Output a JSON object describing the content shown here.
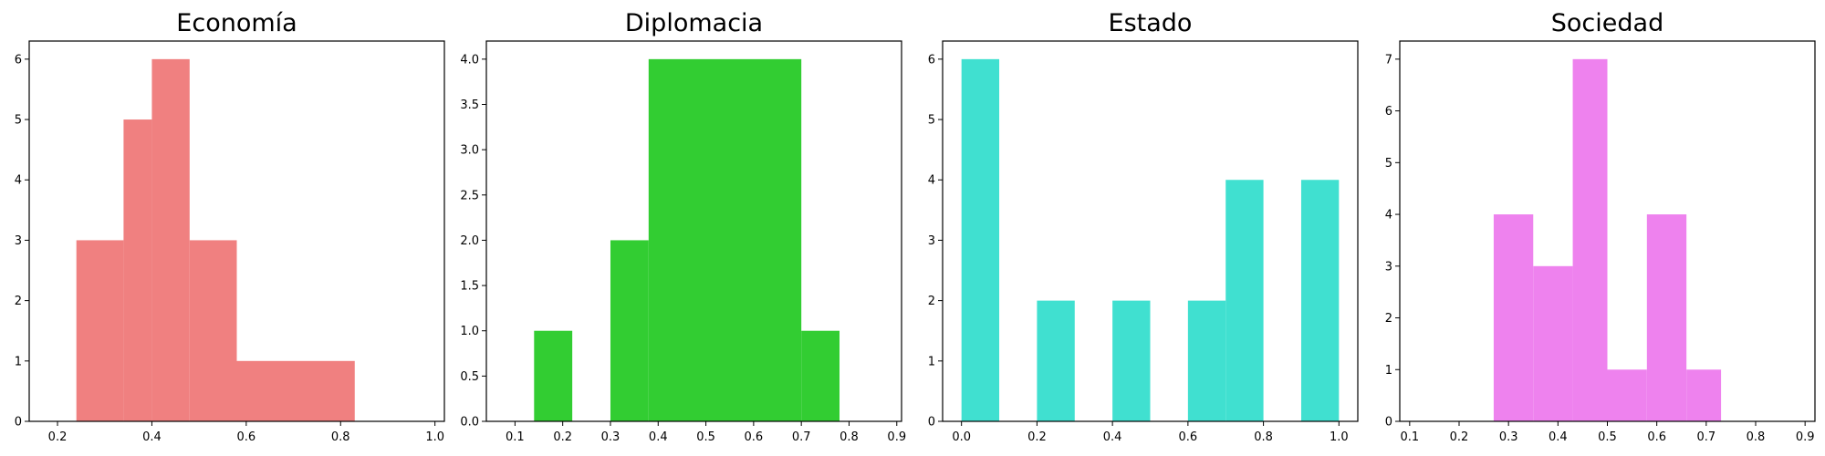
{
  "chart_data": [
    {
      "type": "bar",
      "subtype": "histogram",
      "title": "Economía",
      "color": "#f08080",
      "xlim": [
        0.14,
        1.02
      ],
      "ylim": [
        0,
        6.3
      ],
      "xticks": [
        0.2,
        0.4,
        0.6,
        0.8,
        1.0
      ],
      "xtick_labels": [
        "0.2",
        "0.4",
        "0.6",
        "0.8",
        "1.0"
      ],
      "yticks": [
        0,
        1,
        2,
        3,
        4,
        5,
        6
      ],
      "ytick_labels": [
        "0",
        "1",
        "2",
        "3",
        "4",
        "5",
        "6"
      ],
      "bins": [
        {
          "start": 0.24,
          "end": 0.34,
          "count": 3
        },
        {
          "start": 0.34,
          "end": 0.4,
          "count": 5
        },
        {
          "start": 0.4,
          "end": 0.48,
          "count": 6
        },
        {
          "start": 0.48,
          "end": 0.58,
          "count": 3
        },
        {
          "start": 0.58,
          "end": 0.83,
          "count": 1
        }
      ]
    },
    {
      "type": "bar",
      "subtype": "histogram",
      "title": "Diplomacia",
      "color": "#32cd32",
      "xlim": [
        0.04,
        0.91
      ],
      "ylim": [
        0,
        4.2
      ],
      "xticks": [
        0.1,
        0.2,
        0.3,
        0.4,
        0.5,
        0.6,
        0.7,
        0.8,
        0.9
      ],
      "xtick_labels": [
        "0.1",
        "0.2",
        "0.3",
        "0.4",
        "0.5",
        "0.6",
        "0.7",
        "0.8",
        "0.9"
      ],
      "yticks": [
        0,
        0.5,
        1.0,
        1.5,
        2.0,
        2.5,
        3.0,
        3.5,
        4.0
      ],
      "ytick_labels": [
        "0.0",
        "0.5",
        "1.0",
        "1.5",
        "2.0",
        "2.5",
        "3.0",
        "3.5",
        "4.0"
      ],
      "bins": [
        {
          "start": 0.14,
          "end": 0.22,
          "count": 1
        },
        {
          "start": 0.3,
          "end": 0.38,
          "count": 2
        },
        {
          "start": 0.38,
          "end": 0.7,
          "count": 4
        },
        {
          "start": 0.7,
          "end": 0.78,
          "count": 1
        }
      ]
    },
    {
      "type": "bar",
      "subtype": "histogram",
      "title": "Estado",
      "color": "#40e0d0",
      "xlim": [
        -0.05,
        1.05
      ],
      "ylim": [
        0,
        6.3
      ],
      "xticks": [
        0.0,
        0.2,
        0.4,
        0.6,
        0.8,
        1.0
      ],
      "xtick_labels": [
        "0.0",
        "0.2",
        "0.4",
        "0.6",
        "0.8",
        "1.0"
      ],
      "yticks": [
        0,
        1,
        2,
        3,
        4,
        5,
        6
      ],
      "ytick_labels": [
        "0",
        "1",
        "2",
        "3",
        "4",
        "5",
        "6"
      ],
      "bins": [
        {
          "start": 0.0,
          "end": 0.1,
          "count": 6
        },
        {
          "start": 0.2,
          "end": 0.3,
          "count": 2
        },
        {
          "start": 0.4,
          "end": 0.5,
          "count": 2
        },
        {
          "start": 0.6,
          "end": 0.7,
          "count": 2
        },
        {
          "start": 0.7,
          "end": 0.8,
          "count": 4
        },
        {
          "start": 0.9,
          "end": 1.0,
          "count": 4
        }
      ]
    },
    {
      "type": "bar",
      "subtype": "histogram",
      "title": "Sociedad",
      "color": "#ee82ee",
      "xlim": [
        0.08,
        0.92
      ],
      "ylim": [
        0,
        7.35
      ],
      "xticks": [
        0.1,
        0.2,
        0.3,
        0.4,
        0.5,
        0.6,
        0.7,
        0.8,
        0.9
      ],
      "xtick_labels": [
        "0.1",
        "0.2",
        "0.3",
        "0.4",
        "0.5",
        "0.6",
        "0.7",
        "0.8",
        "0.9"
      ],
      "yticks": [
        0,
        1,
        2,
        3,
        4,
        5,
        6,
        7
      ],
      "ytick_labels": [
        "0",
        "1",
        "2",
        "3",
        "4",
        "5",
        "6",
        "7"
      ],
      "bins": [
        {
          "start": 0.27,
          "end": 0.35,
          "count": 4
        },
        {
          "start": 0.35,
          "end": 0.43,
          "count": 3
        },
        {
          "start": 0.43,
          "end": 0.5,
          "count": 7
        },
        {
          "start": 0.5,
          "end": 0.58,
          "count": 1
        },
        {
          "start": 0.58,
          "end": 0.66,
          "count": 4
        },
        {
          "start": 0.66,
          "end": 0.73,
          "count": 1
        }
      ]
    }
  ]
}
